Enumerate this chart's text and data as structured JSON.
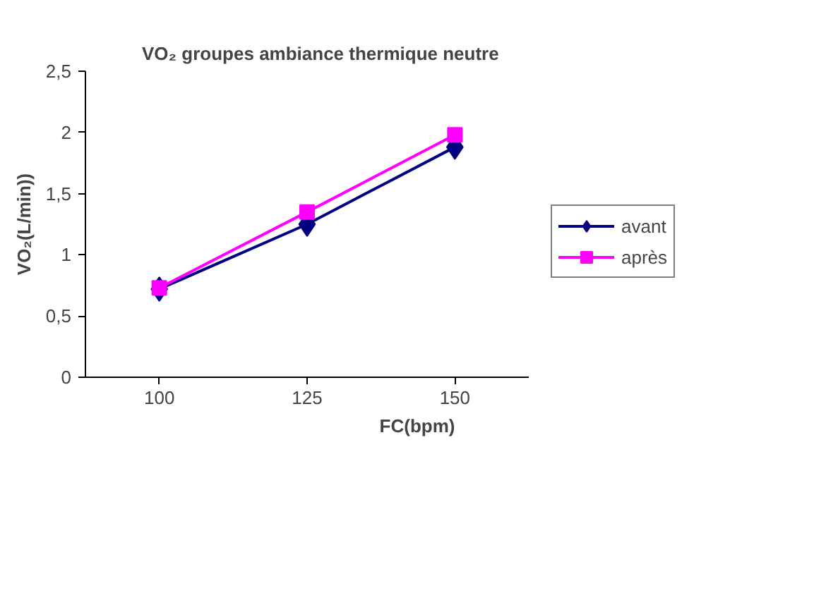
{
  "chart_data": {
    "type": "line",
    "title": "VO₂ groupes ambiance thermique neutre",
    "xlabel": "FC(bpm)",
    "ylabel": "VO₂(L/min))",
    "categories": [
      "100",
      "125",
      "150"
    ],
    "ylim": [
      0,
      2.5
    ],
    "yticks": [
      0,
      {
        "value": 0.5,
        "label": "0,5"
      },
      1,
      {
        "value": 1.5,
        "label": "1,5"
      },
      2,
      {
        "value": 2.5,
        "label": "2,5"
      }
    ],
    "grid": false,
    "legend": "right",
    "line_style": "solid",
    "series": [
      {
        "name": "avant",
        "color": "#000080",
        "marker": "diamond",
        "values": [
          0.72,
          1.25,
          1.88
        ]
      },
      {
        "name": "après",
        "color": "#ff00ff",
        "marker": "square",
        "values": [
          0.73,
          1.35,
          1.98
        ]
      }
    ]
  }
}
